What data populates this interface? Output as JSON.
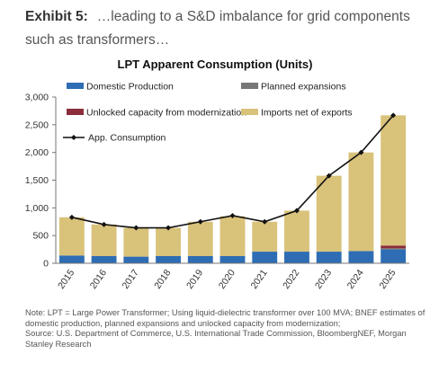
{
  "header": {
    "exhibit_label": "Exhibit 5:",
    "headline": "…leading to a S&D imbalance for grid components such as transformers…"
  },
  "footnote": {
    "note": "Note: LPT = Large Power Transformer; Using liquid-dielectric transformer over 100 MVA; BNEF estimates of domestic production, planned expansions and unlocked capacity from modernization;",
    "source": "Source: U.S. Department of Commerce, U.S. International Trade Commission, BloombergNEF, Morgan Stanley Research"
  },
  "chart_data": {
    "type": "bar",
    "stacked": true,
    "title": "LPT Apparent Consumption (Units)",
    "categories": [
      "2015",
      "2016",
      "2017",
      "2018",
      "2019",
      "2020",
      "2021",
      "2022",
      "2023",
      "2024",
      "2025"
    ],
    "ylim": [
      0,
      3000
    ],
    "yticks": [
      "0",
      "500",
      "1,000",
      "1,500",
      "2,000",
      "2,500",
      "3,000"
    ],
    "ytick_values": [
      0,
      500,
      1000,
      1500,
      2000,
      2500,
      3000
    ],
    "grid": false,
    "legend_position": "top",
    "series": [
      {
        "name": "Domestic Production",
        "color": "#2e6db4",
        "values": [
          140,
          130,
          120,
          130,
          130,
          130,
          210,
          210,
          210,
          220,
          250
        ]
      },
      {
        "name": "Planned expansions",
        "color": "#777777",
        "values": [
          0,
          0,
          0,
          0,
          0,
          0,
          0,
          0,
          0,
          0,
          20
        ]
      },
      {
        "name": "Unlocked capacity from modernization",
        "color": "#8b2d3a",
        "values": [
          0,
          0,
          0,
          0,
          0,
          0,
          0,
          0,
          0,
          0,
          50
        ]
      },
      {
        "name": "Imports net of exports",
        "color": "#d9c27a",
        "values": [
          690,
          570,
          520,
          510,
          620,
          720,
          540,
          740,
          1370,
          1780,
          2350
        ]
      }
    ],
    "line": {
      "name": "App. Consumption",
      "color": "#111111",
      "values": [
        830,
        700,
        640,
        640,
        750,
        860,
        750,
        950,
        1580,
        2000,
        2670
      ]
    }
  }
}
